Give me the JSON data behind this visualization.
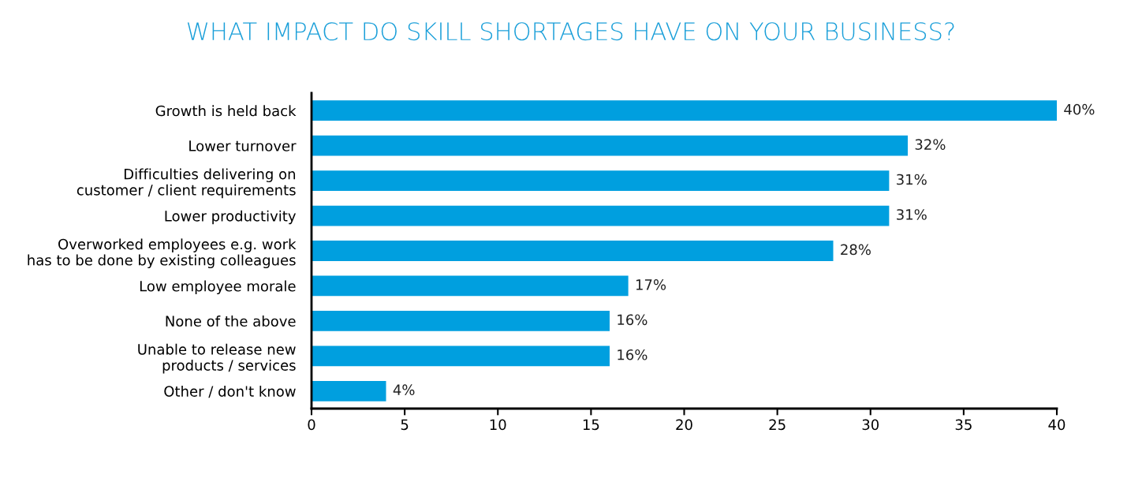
{
  "chart_data": {
    "type": "bar",
    "orientation": "horizontal",
    "title": "WHAT IMPACT DO SKILL SHORTAGES HAVE ON YOUR BUSINESS?",
    "categories": [
      "Growth is held back",
      "Lower turnover",
      "Difficulties delivering on\ncustomer / client requirements",
      "Lower productivity",
      "Overworked employees e.g. work\nhas to be done by existing colleagues",
      "Low employee morale",
      "None of the above",
      "Unable to release new\nproducts / services",
      "Other / don't know"
    ],
    "values": [
      40,
      32,
      31,
      31,
      28,
      17,
      16,
      16,
      4
    ],
    "value_labels": [
      "40%",
      "32%",
      "31%",
      "31%",
      "28%",
      "17%",
      "16%",
      "16%",
      "4%"
    ],
    "color": "#009fdf",
    "xlim": [
      0,
      40
    ],
    "xticks": [
      0,
      5,
      10,
      15,
      20,
      25,
      30,
      35,
      40
    ],
    "grid": false
  }
}
